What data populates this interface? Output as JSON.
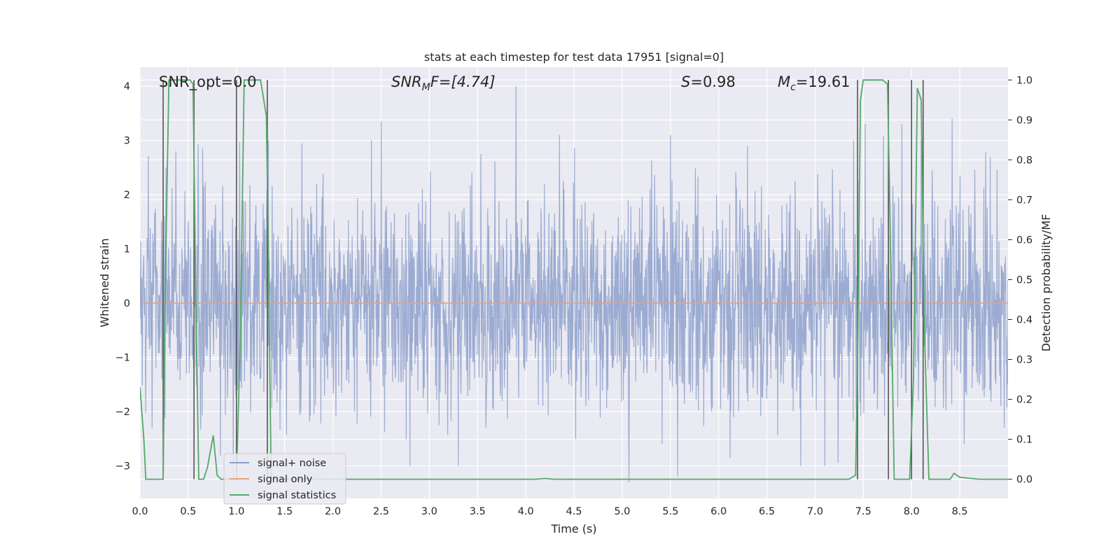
{
  "chart_data": {
    "type": "line",
    "title": "stats at each timestep for test data 17951 [signal=0]",
    "xlabel": "Time (s)",
    "ylabel": "Whitened strain",
    "ylabel_right": "Detection probability/MF",
    "xlim": [
      0,
      9.0
    ],
    "ylim": [
      -3.6,
      4.35
    ],
    "ylim_right": [
      -0.048,
      1.032
    ],
    "x_ticks": [
      0.0,
      0.5,
      1.0,
      1.5,
      2.0,
      2.5,
      3.0,
      3.5,
      4.0,
      4.5,
      5.0,
      5.5,
      6.0,
      6.5,
      7.0,
      7.5,
      8.0,
      8.5
    ],
    "x_tick_labels": [
      "0.0",
      "0.5",
      "1.0",
      "1.5",
      "2.0",
      "2.5",
      "3.0",
      "3.5",
      "4.0",
      "4.5",
      "5.0",
      "5.5",
      "6.0",
      "6.5",
      "7.0",
      "7.5",
      "8.0",
      "8.5"
    ],
    "y_ticks": [
      -3,
      -2,
      -1,
      0,
      1,
      2,
      3,
      4
    ],
    "y_tick_labels": [
      "−3",
      "−2",
      "−1",
      "0",
      "1",
      "2",
      "3",
      "4"
    ],
    "y_ticks_right": [
      0.0,
      0.1,
      0.2,
      0.3,
      0.4,
      0.5,
      0.6,
      0.7,
      0.8,
      0.9,
      1.0
    ],
    "y_tick_labels_right": [
      "0.0",
      "0.1",
      "0.2",
      "0.3",
      "0.4",
      "0.5",
      "0.6",
      "0.7",
      "0.8",
      "0.9",
      "1.0"
    ],
    "grid": true,
    "legend_position": "lower-left",
    "annotations": {
      "snr_opt": "SNR_opt=0.0",
      "snr_mf_base": "SNR",
      "snr_mf_sub": "M",
      "snr_mf_rest": "F=[4.74]",
      "s_italic": "S",
      "s_rest": "=0.98",
      "mc_base": "M",
      "mc_sub": "c",
      "mc_rest": "=19.61"
    },
    "series": [
      {
        "name": "signal+ noise",
        "color": "#8da0cb",
        "style": "noise trace, standard deviation ~1, peaks at about 4.0 near t=3.9 and about -3.3 near t=5.07",
        "peaks": [
          [
            0.27,
            2.5
          ],
          [
            0.37,
            2.8
          ],
          [
            0.65,
            2.85
          ],
          [
            1.33,
            3.0
          ],
          [
            1.68,
            2.95
          ],
          [
            2.4,
            3.0
          ],
          [
            2.5,
            3.35
          ],
          [
            3.9,
            4.0
          ],
          [
            4.35,
            3.1
          ],
          [
            5.5,
            3.1
          ],
          [
            6.3,
            2.9
          ],
          [
            7.4,
            3.0
          ],
          [
            7.52,
            3.3
          ],
          [
            7.9,
            3.3
          ],
          [
            8.1,
            3.0
          ],
          [
            8.42,
            3.4
          ],
          [
            3.3,
            -3.0
          ],
          [
            2.8,
            -3.0
          ],
          [
            5.07,
            -3.3
          ],
          [
            6.85,
            -3.0
          ],
          [
            7.1,
            -3.0
          ]
        ]
      },
      {
        "name": "signal only",
        "color": "#e4a183",
        "x": [
          0,
          9.0
        ],
        "y": [
          0,
          0
        ]
      },
      {
        "name": "signal statistics",
        "color": "#55a868",
        "axis": "right",
        "x": [
          0.0,
          0.04,
          0.06,
          0.24,
          0.26,
          0.3,
          0.52,
          0.55,
          0.58,
          0.61,
          0.66,
          0.7,
          0.76,
          0.8,
          0.84,
          0.86,
          1.0,
          1.04,
          1.08,
          1.25,
          1.31,
          1.33,
          1.36,
          4.1,
          4.2,
          4.3,
          7.35,
          7.42,
          7.44,
          7.47,
          7.5,
          7.7,
          7.75,
          7.77,
          7.82,
          7.98,
          8.02,
          8.06,
          8.1,
          8.13,
          8.18,
          8.4,
          8.44,
          8.5,
          8.7,
          9.0
        ],
        "y": [
          0.23,
          0.1,
          0.0,
          0.0,
          0.45,
          1.0,
          1.0,
          0.99,
          0.43,
          0.0,
          0.0,
          0.03,
          0.11,
          0.01,
          0.0,
          0.0,
          0.0,
          0.35,
          1.0,
          1.0,
          0.91,
          0.6,
          0.0,
          0.0,
          0.002,
          0.0,
          0.0,
          0.01,
          0.3,
          0.95,
          1.0,
          1.0,
          0.99,
          0.75,
          0.0,
          0.0,
          0.25,
          0.98,
          0.95,
          0.4,
          0.0,
          0.0,
          0.015,
          0.005,
          0.0,
          0.0
        ]
      }
    ],
    "markers": [
      0.24,
      0.56,
      1.0,
      1.32,
      7.44,
      7.76,
      8.0,
      8.12
    ]
  }
}
